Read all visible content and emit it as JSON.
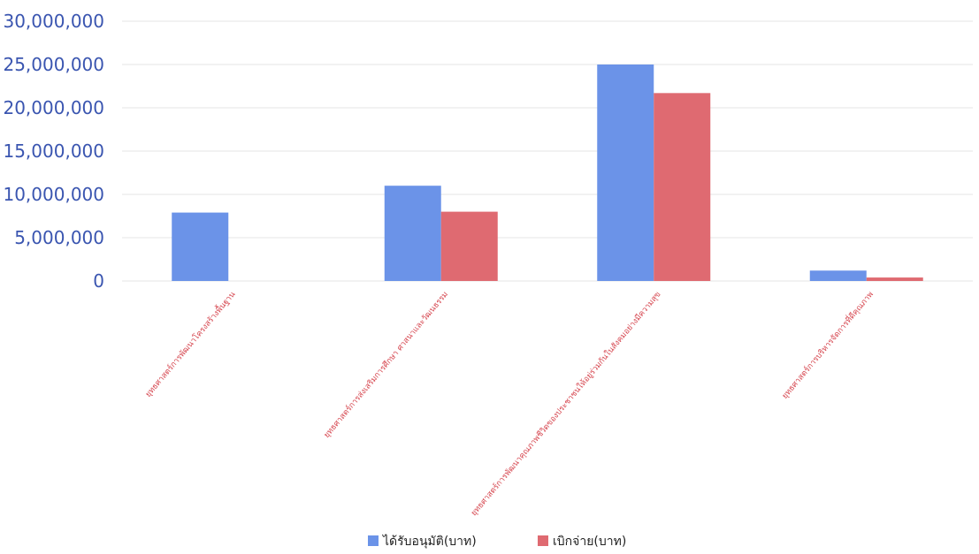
{
  "chart_data": {
    "type": "bar",
    "title": "",
    "xlabel": "",
    "ylabel": "",
    "ylim": [
      0,
      30000000
    ],
    "yticks": [
      0,
      5000000,
      10000000,
      15000000,
      20000000,
      25000000,
      30000000
    ],
    "ytick_labels": [
      "0",
      "5,000,000",
      "10,000,000",
      "15,000,000",
      "20,000,000",
      "25,000,000",
      "30,000,000"
    ],
    "grid": true,
    "legend_position": "bottom",
    "categories": [
      "ยุทธศาสตร์การพัฒนาโครงสร้างพื้นฐาน",
      "ยุทธศาสตร์การส่งเสริมการศึกษา ศาสนาและวัฒนธรรม",
      "ยุทธศาสตร์การพัฒนาคุณภาพชีวิตของประชาชนให้อยู่ร่วมกันในสังคมอย่างมีความสุข",
      "ยุทธศาสตร์การบริหารจัดการที่ดีคุณภาพ"
    ],
    "series": [
      {
        "name": "ได้รับอนุมัติ(บาท)",
        "color": "#6b93e8",
        "values": [
          7900000,
          11000000,
          25000000,
          1200000
        ]
      },
      {
        "name": "เบิกจ่าย(บาท)",
        "color": "#df6a71",
        "values": [
          0,
          8000000,
          21700000,
          400000
        ]
      }
    ]
  }
}
